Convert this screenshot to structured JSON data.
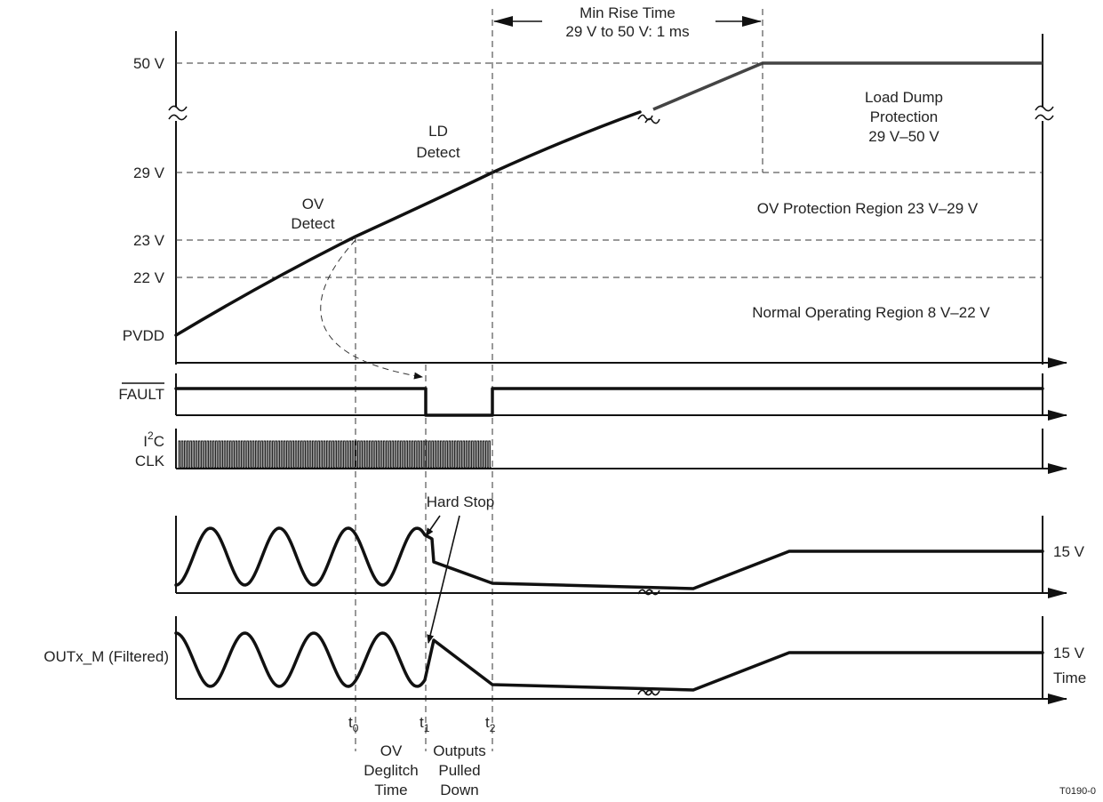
{
  "voltage_levels": {
    "v50": "50 V",
    "v29": "29 V",
    "v23": "23 V",
    "v22": "22 V",
    "pvdd": "PVDD"
  },
  "min_rise_time": {
    "line1": "Min Rise Time",
    "line2": "29 V to 50 V:  1 ms"
  },
  "regions": {
    "load_dump": [
      "Load Dump",
      "Protection",
      "29 V–50 V"
    ],
    "ov_protection": "OV Protection Region  23 V–29 V",
    "normal": "Normal Operating Region 8 V–22 V"
  },
  "events": {
    "ld_detect": [
      "LD",
      "Detect"
    ],
    "ov_detect": [
      "OV",
      "Detect"
    ],
    "hard_stop": "Hard Stop"
  },
  "signals": {
    "fault": "FAULT",
    "i2c_line1_main": "I",
    "i2c_line1_sup": "2",
    "i2c_line1_rest": "C",
    "i2c_line2": "CLK",
    "outx_m": "OUTx_M (Filtered)"
  },
  "output_levels": {
    "out_p": "15 V",
    "out_m": "15 V",
    "time": "Time"
  },
  "times": {
    "t": "t",
    "t0_sub": "0",
    "t1_sub": "1",
    "t2_sub": "2",
    "ov_deglitch": [
      "OV",
      "Deglitch",
      "Time"
    ],
    "outputs_pulled": [
      "Outputs",
      "Pulled",
      "Down"
    ]
  },
  "figure_id": "T0190-0",
  "colors": {
    "signal": "#111111",
    "signal_gray": "#444444",
    "text": "#222222",
    "background": "#ffffff"
  }
}
